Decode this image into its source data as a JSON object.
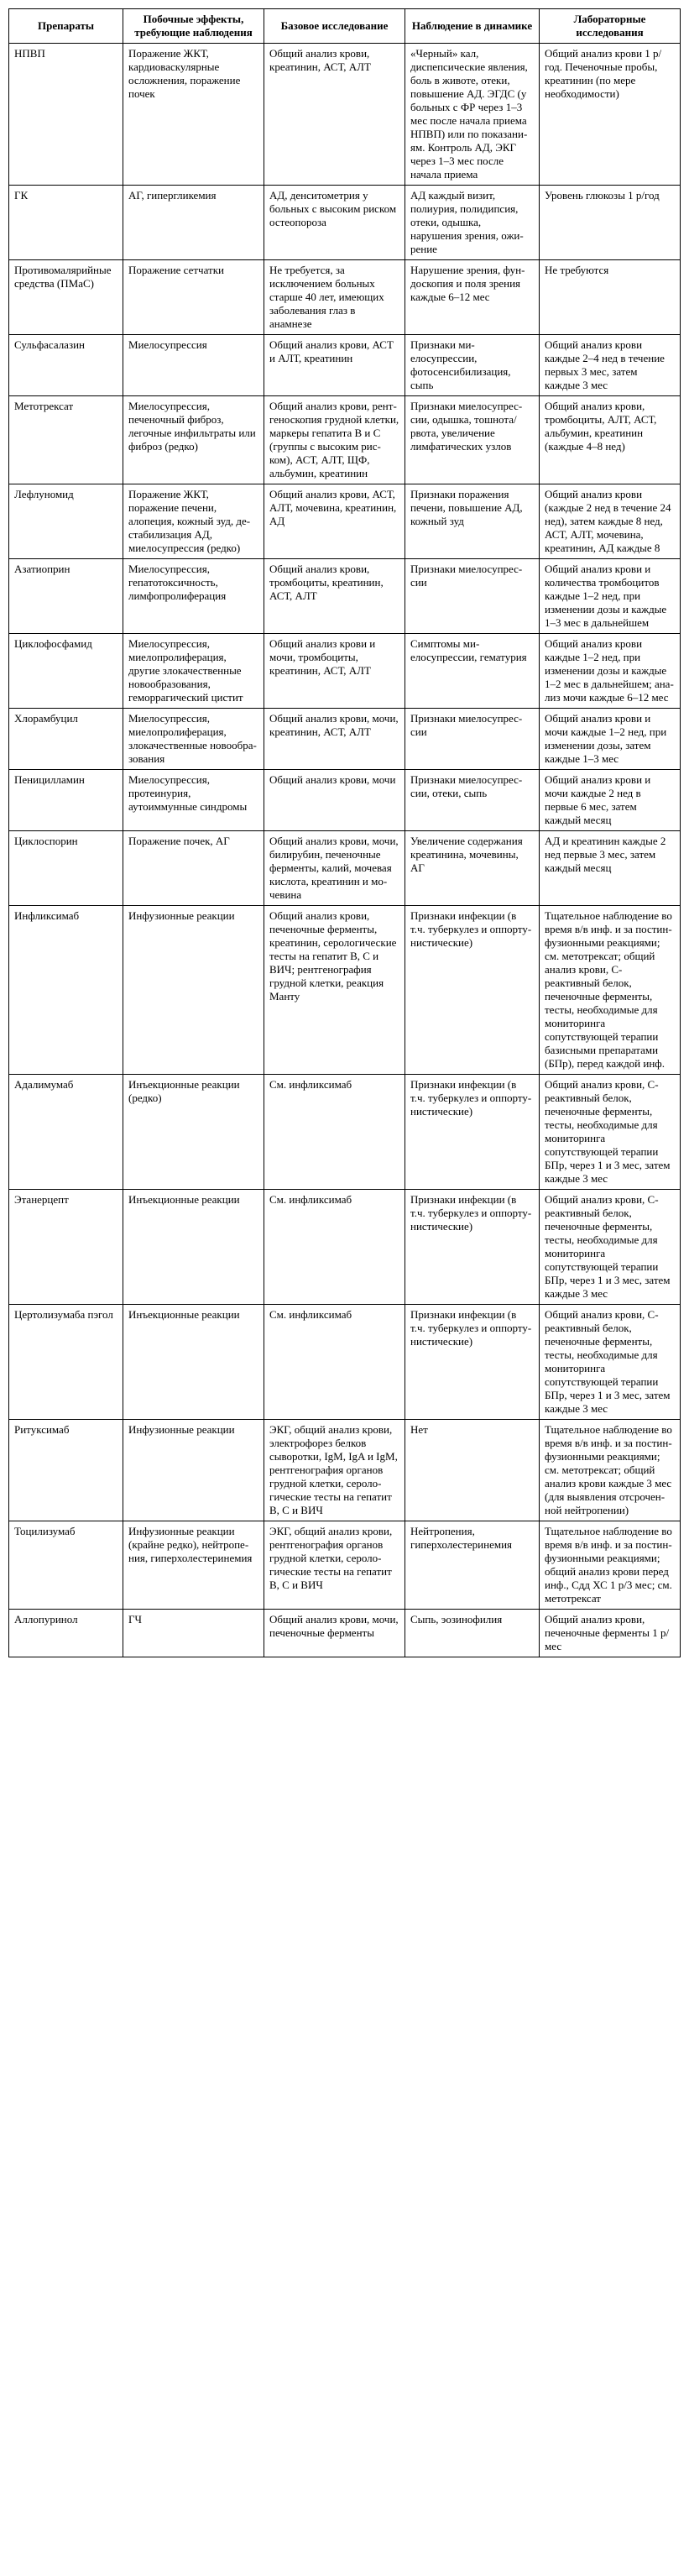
{
  "headers": [
    "Препараты",
    "Побочные эффекты, требующие наблюдения",
    "Базовое исследование",
    "Наблюдение в динамике",
    "Лабораторные исследования"
  ],
  "rows": [
    {
      "c1": "НПВП",
      "c2": "Поражение ЖКТ, кардиоваскуляр­ные осложнения, поражение почек",
      "c3": "Общий анализ крови, креати­нин, АСТ, АЛТ",
      "c4": "«Черный» кал, диспепсичес­кие явления, боль в жи­воте, отеки, повышение АД. ЭГДС (у больных с ФР через 1–3 мес после начала приема НПВП) или по показани­ям. Контроль АД, ЭКГ через 1–3 мес после начала приема",
      "c5": "Общий анализ крови 1 р/год. Печеночные пробы, креатинин (по мере необходи­мости)"
    },
    {
      "c1": "ГК",
      "c2": "АГ, гипергликемия",
      "c3": "АД, денситомет­рия у больных с высоким рис­ком остеопороза",
      "c4": "АД каждый ви­зит, полиурия, полидипсия, отеки, одыш­ка, нарушения зрения, ожи­рение",
      "c5": "Уровень глюкозы 1 р/год"
    },
    {
      "c1": "Противомаля­рийные средст­ва (ПМаС)",
      "c2": "Поражение сет­чатки",
      "c3": "Не требуется, за исключением больных старше 40 лет, имеющих заболевания глаз в анамнезе",
      "c4": "Нарушение зрения, фун­доскопия и по­ля зрения каж­дые 6–12 мес",
      "c5": "Не требуются"
    },
    {
      "c1": "Сульфасалазин",
      "c2": "Миелосупрессия",
      "c3": "Общий ана­лиз крови, АСТ и АЛТ, креати­нин",
      "c4": "Признаки ми­елосупрессии, фотосенсиби­лизация, сыпь",
      "c5": "Общий анализ крови каждые 2–4 нед в те­чение первых 3 мес, затем каждые 3 мес"
    },
    {
      "c1": "Метотрексат",
      "c2": "Миелосупрес­сия, печеночный фиброз, легочные инфильтраты или фиброз (редко)",
      "c3": "Общий анализ крови, рент­геноскопия грудной клетки, маркеры гепати­та В и С (группы с высоким рис­ком), АСТ, АЛТ, ЩФ, альбумин, креатинин",
      "c4": "Признаки миелосупрес­сии, одышка, тошнота/рво­та, увеличение лимфатических узлов",
      "c5": "Общий анализ крови, тромбоциты, АЛТ, АСТ, альбумин, креатинин (каждые 4–8 нед)"
    },
    {
      "c1": "Лефлуномид",
      "c2": "Поражение ЖКТ, поражение пе­чени, алопеция, кожный зуд, де­стабилизация АД, миелосупрессия (редко)",
      "c3": "Общий анализ крови, АСТ, АЛТ, мочевина, креатинин, АД",
      "c4": "Признаки поражения печени, по­вышение АД, кожный зуд",
      "c5": "Общий анализ крови (каждые 2 нед в те­чение 24 нед), затем каждые 8 нед, АСТ, АЛТ, мочевина, креатинин, АД каждые 8"
    },
    {
      "c1": "Азатиоприн",
      "c2": "Миелосупрессия, гепатотоксич­ность, лимфопро­лиферация",
      "c3": "Общий анализ крови, тромбо­циты, креати­нин, АСТ, АЛТ",
      "c4": "Признаки миелосупрес­сии",
      "c5": "Общий анализ крови и количества тром­боцитов каждые 1–2 нед, при измене­нии дозы и каждые 1–3 мес в дальней­шем"
    },
    {
      "c1": "Циклофосфа­мид",
      "c2": "Миелосупрессия, миелопролифе­рация, другие злокачественные новообразования, геморрагический цистит",
      "c3": "Общий анализ крови и мочи, тромбоциты, креатинин, АСТ, АЛТ",
      "c4": "Симптомы ми­елосупрессии, гематурия",
      "c5": "Общий анализ кро­ви каждые 1–2 нед, при изменении дозы и каждые 1–2 мес в дальнейшем; ана­лиз мочи каждые 6–12 мес"
    },
    {
      "c1": "Хлорамбуцил",
      "c2": "Миелосупрессия, миелопролифе­рация, злокачест­венные новообра­зования",
      "c3": "Общий анализ крови, мочи, креатинин, АСТ, АЛТ",
      "c4": "Признаки миелосупрес­сии",
      "c5": "Общий анализ кро­ви и мочи каждые 1–2 нед, при изме­нении дозы, затем каждые 1–3 мес"
    },
    {
      "c1": "Пеницилламин",
      "c2": "Миелосупрессия, протеинурия, аутоиммунные синдромы",
      "c3": "Общий анализ крови, мочи",
      "c4": "Признаки миелосупрес­сии, отеки, сыпь",
      "c5": "Общий анализ крови и мочи каждые 2 нед в первые 6 мес, затем каждый месяц"
    },
    {
      "c1": "Циклоспорин",
      "c2": "Поражение по­чек, АГ",
      "c3": "Общий анализ крови, мочи, билирубин, пе­ченочные фер­менты, калий, мочевая кислота, креатинин и мо­чевина",
      "c4": "Увеличение содержания креатинина, мочевины, АГ",
      "c5": "АД и креатинин каждые 2 нед первые 3 мес, затем каждый месяц"
    },
    {
      "c1": "Инфликсимаб",
      "c2": "Инфузионные реакции",
      "c3": "Общий анализ крови, печеноч­ные ферменты, креатинин, серо­логические тесты на гепатит В, С и ВИЧ; рентгеног­рафия грудной клетки, реакция Манту",
      "c4": "Признаки инфекции (в т.ч. туберку­лез и оппорту­нистические)",
      "c5": "Тщательное на­блюдение во время в/в инф. и за постин­фузионными реак­циями; см. метотрексат; общий анализ крови, С-реактивный белок, печеночные фермен­ты, тесты, необхо­димые для монито­ринга сопутствующей терапии базисными препаратами (БПр), перед каждой инф."
    },
    {
      "c1": "Адалимумаб",
      "c2": "Инъекционные реакции (редко)",
      "c3": "См. инфликси­маб",
      "c4": "Признаки инфекции (в т.ч. туберку­лез и оппорту­нистические)",
      "c5": "Общий анализ крови, С-реактивный белок, печеночные фермен­ты, тесты, необхо­димые для монито­ринга сопутствующей терапии БПр, через 1 и 3 мес, затем каж­дые 3 мес"
    },
    {
      "c1": "Этанерцепт",
      "c2": "Инъекционные реакции",
      "c3": "См. инфликси­маб",
      "c4": "Признаки инфекции (в т.ч. туберку­лез и оппорту­нистические)",
      "c5": "Общий анализ крови, С-реактивный белок, печеночные фермен­ты, тесты, необхо­димые для монито­ринга сопутствующей терапии БПр, через 1 и 3 мес, затем каж­дые 3 мес"
    },
    {
      "c1": "Цертолизумаба пэгол",
      "c2": "Инъекционные реакции",
      "c3": "См. инфликси­маб",
      "c4": "Признаки инфекции (в т.ч. туберку­лез и оппорту­нистические)",
      "c5": "Общий анализ крови, С-реактивный белок, печеночные фермен­ты, тесты, необхо­димые для монито­ринга сопутствующей терапии БПр, через 1 и 3 мес, затем каж­дые 3 мес"
    },
    {
      "c1": "Ритуксимаб",
      "c2": "Инфузионные реакции",
      "c3": "ЭКГ, общий ана­лиз крови, элек­трофорез белков сыворотки, IgM, IgA и IgM, рен­тгенография органов грудной клетки, сероло­гические тесты на гепатит В, С и ВИЧ",
      "c4": "Нет",
      "c5": "Тщательное на­блюдение во время в/в инф. и за постин­фузионными реакци­ями; см. метотрексат; общий анализ крови каждые 3 мес (для выявления отсрочен­ной нейтропении)"
    },
    {
      "c1": "Тоцилизумаб",
      "c2": "Инфузионные реакции (крайне редко), нейтропе­ния, гиперхолес­теринемия",
      "c3": "ЭКГ, общий анализ крови, рентгенография органов грудной клетки, сероло­гические тесты на гепатит В, С и ВИЧ",
      "c4": "Нейтропения, гиперхолесте­ринемия",
      "c5": "Тщательное на­блюдение во время в/в инф. и за постин­фузионными реакци­ями; общий анализ крови перед инф., Сдд ХС 1 р/3 мес; см. метотрексат"
    },
    {
      "c1": "Аллопуринол",
      "c2": "ГЧ",
      "c3": "Общий анализ крови, мочи, печеночные фер­менты",
      "c4": "Сыпь, эозинофилия",
      "c5": "Общий анализ крови, печеночные фермен­ты 1 р/мес"
    }
  ]
}
